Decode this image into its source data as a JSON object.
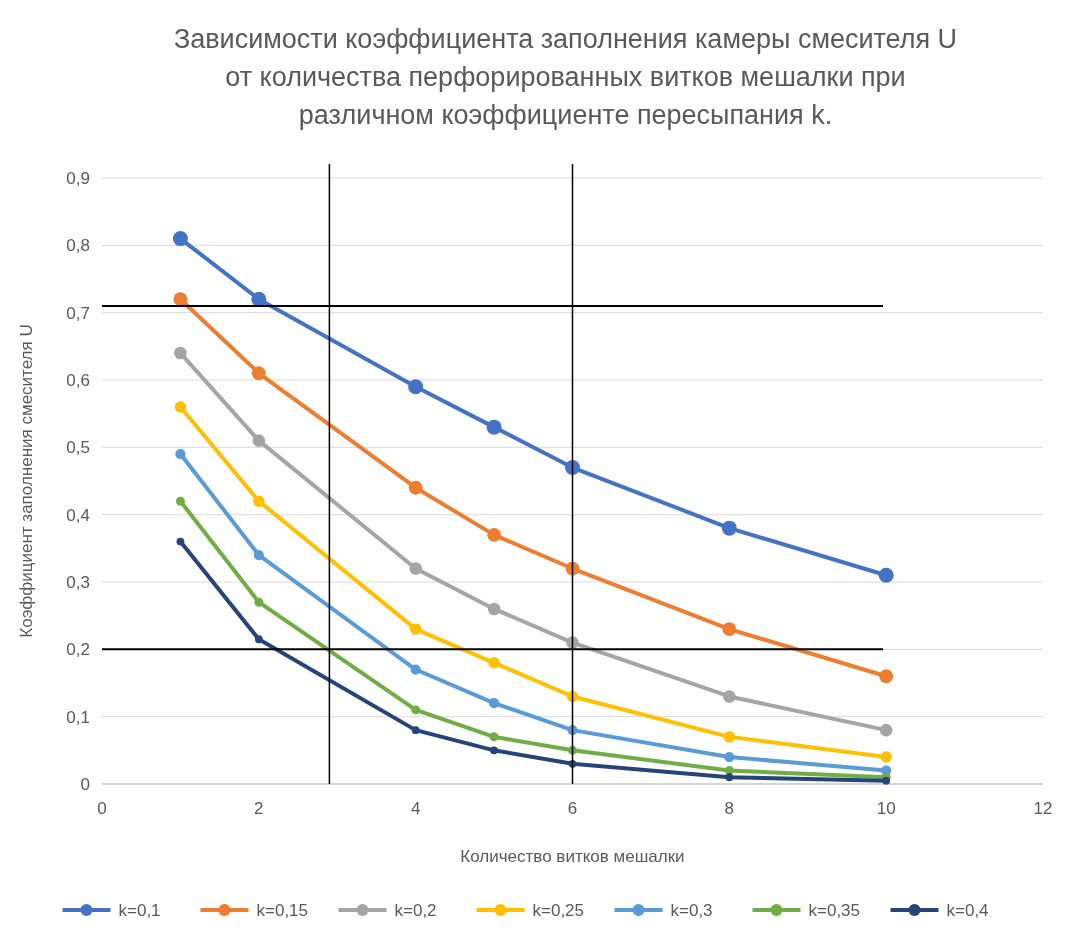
{
  "chart_data": {
    "type": "line",
    "title": "Зависимости коэффициента заполнения камеры смесителя U от количества перфорированных витков мешалки при различном коэффициенте пересыпания k.",
    "xlabel": "Количество витков мешалки",
    "ylabel": "Коэффициент заполнения смесителя U",
    "x": [
      1,
      2,
      4,
      5,
      6,
      8,
      10
    ],
    "series": [
      {
        "name": "k=0,1",
        "color": "#4472c4",
        "values": [
          0.81,
          0.72,
          0.59,
          0.53,
          0.47,
          0.38,
          0.31
        ]
      },
      {
        "name": "k=0,15",
        "color": "#ed7d31",
        "values": [
          0.72,
          0.61,
          0.44,
          0.37,
          0.32,
          0.23,
          0.16
        ]
      },
      {
        "name": "k=0,2",
        "color": "#a5a5a5",
        "values": [
          0.64,
          0.51,
          0.32,
          0.26,
          0.21,
          0.13,
          0.08
        ]
      },
      {
        "name": "k=0,25",
        "color": "#ffc000",
        "values": [
          0.56,
          0.42,
          0.23,
          0.18,
          0.13,
          0.07,
          0.04
        ]
      },
      {
        "name": "k=0,3",
        "color": "#5b9bd5",
        "values": [
          0.49,
          0.34,
          0.17,
          0.12,
          0.08,
          0.04,
          0.02
        ]
      },
      {
        "name": "k=0,35",
        "color": "#70ad47",
        "values": [
          0.42,
          0.27,
          0.11,
          0.07,
          0.05,
          0.02,
          0.01
        ]
      },
      {
        "name": "k=0,4",
        "color": "#264478",
        "values": [
          0.36,
          0.215,
          0.08,
          0.05,
          0.03,
          0.01,
          0.005
        ]
      }
    ],
    "xlim": [
      0,
      12
    ],
    "xticks": [
      0,
      2,
      4,
      6,
      8,
      10,
      12
    ],
    "ylim": [
      0,
      0.9
    ],
    "yticks": [
      0,
      {
        "value": 0.1,
        "label": "0,1"
      },
      {
        "value": 0.2,
        "label": "0,2"
      },
      {
        "value": 0.3,
        "label": "0,3"
      },
      {
        "value": 0.4,
        "label": "0,4"
      },
      {
        "value": 0.5,
        "label": "0,5"
      },
      {
        "value": 0.6,
        "label": "0,6"
      },
      {
        "value": 0.7,
        "label": "0,7"
      },
      {
        "value": 0.8,
        "label": "0,8"
      },
      {
        "value": 0.9,
        "label": "0,9"
      }
    ],
    "ref_lines": [
      {
        "axis": "x",
        "value": 2.9,
        "color": "#000000"
      },
      {
        "axis": "x",
        "value": 6,
        "color": "#000000"
      },
      {
        "axis": "y",
        "value": 0.71,
        "color": "#000000"
      },
      {
        "axis": "y",
        "value": 0.2,
        "color": "#000000"
      }
    ],
    "grid": "y",
    "legend": "bottom",
    "marker": "circle",
    "line_style": "solid"
  }
}
